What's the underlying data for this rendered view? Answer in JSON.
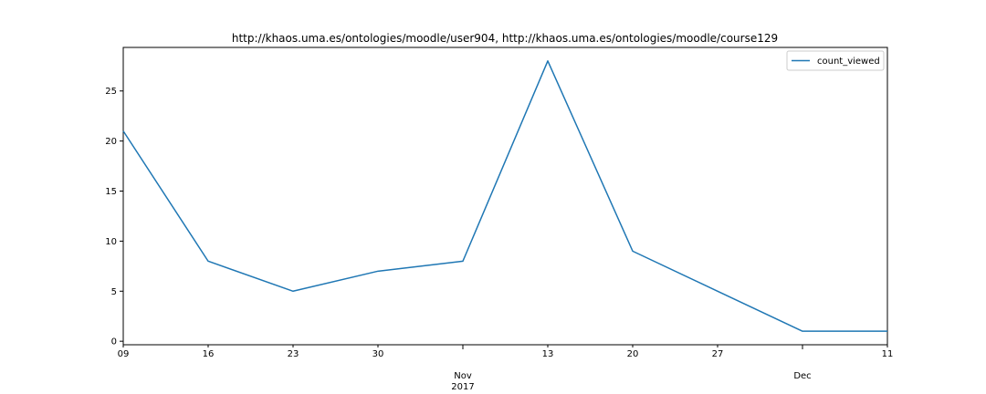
{
  "chart_data": {
    "type": "line",
    "title": "http://khaos.uma.es/ontologies/moodle/user904, http://khaos.uma.es/ontologies/moodle/course129",
    "xlabel": "",
    "ylabel": "",
    "x": [
      "2017-10-09",
      "2017-10-16",
      "2017-10-23",
      "2017-10-30",
      "2017-11-06",
      "2017-11-13",
      "2017-11-20",
      "2017-11-27",
      "2017-12-04",
      "2017-12-11"
    ],
    "series": [
      {
        "name": "count_viewed",
        "color": "#1f77b4",
        "values": [
          21,
          8,
          5,
          7,
          8,
          28,
          9,
          5,
          1,
          1
        ]
      }
    ],
    "ylim": [
      -0.35,
      29.35
    ],
    "y_ticks": [
      0,
      5,
      10,
      15,
      20,
      25
    ],
    "x_minor_ticks": [
      {
        "date": "2017-10-09",
        "label": "09"
      },
      {
        "date": "2017-10-16",
        "label": "16"
      },
      {
        "date": "2017-10-23",
        "label": "23"
      },
      {
        "date": "2017-10-30",
        "label": "30"
      },
      {
        "date": "2017-11-13",
        "label": "13"
      },
      {
        "date": "2017-11-20",
        "label": "20"
      },
      {
        "date": "2017-11-27",
        "label": "27"
      },
      {
        "date": "2017-12-11",
        "label": "11"
      }
    ],
    "x_major_ticks": [
      {
        "date": "2017-11-06",
        "label": "Nov",
        "sublabel": "2017"
      },
      {
        "date": "2017-12-04",
        "label": "Dec",
        "sublabel": ""
      }
    ],
    "grid": false,
    "legend_position": "top-right"
  }
}
